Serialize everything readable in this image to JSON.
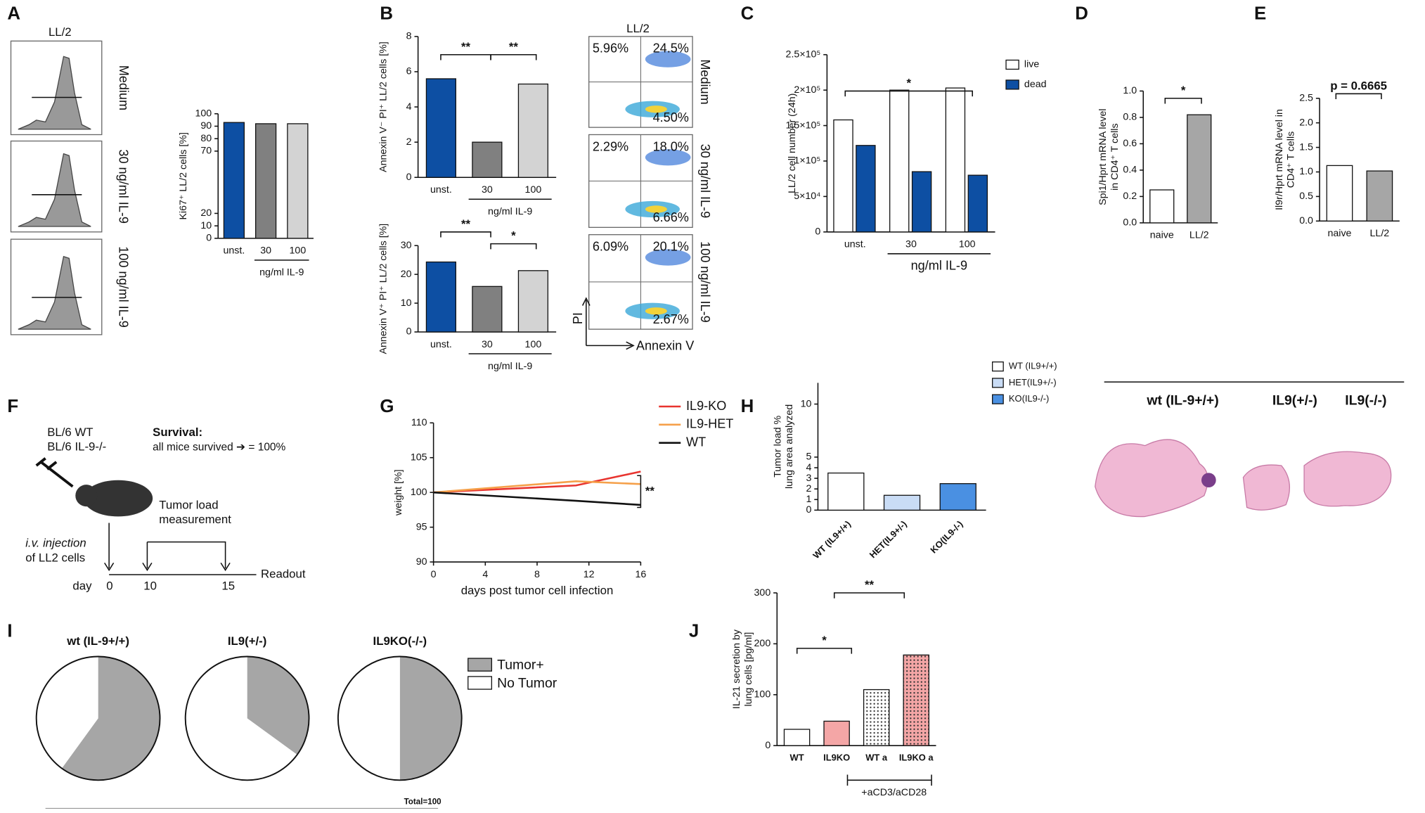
{
  "labels": {
    "panels": [
      "A",
      "B",
      "C",
      "D",
      "E",
      "F",
      "G",
      "H",
      "I",
      "J"
    ]
  },
  "flow_a": {
    "title": "LL/2",
    "rows": [
      "Medium",
      "30 ng/ml IL-9",
      "100 ng/ml IL-9"
    ]
  },
  "flow_b": {
    "title": "LL/2",
    "xlabel": "Annexin V",
    "ylabel": "PI",
    "rows": [
      {
        "label": "Medium",
        "quadrants": [
          "5.96%",
          "24.5%",
          "4.50%"
        ]
      },
      {
        "label": "30 ng/ml IL-9",
        "quadrants": [
          "2.29%",
          "18.0%",
          "6.66%"
        ]
      },
      {
        "label": "100 ng/ml IL-9",
        "quadrants": [
          "6.09%",
          "20.1%",
          "2.67%"
        ]
      }
    ]
  },
  "schematic": {
    "mice": [
      "BL/6 WT",
      "BL/6 IL-9-/-"
    ],
    "survival_title": "Survival:",
    "survival_text": "all mice survived ➔ = 100%",
    "measure": [
      "Tumor load",
      "measurement"
    ],
    "injection": [
      "i.v. injection",
      "of LL2 cells"
    ],
    "day": "day",
    "days": [
      "0",
      "10",
      "15"
    ],
    "readout": "Readout"
  },
  "histology": {
    "labels": [
      "wt (IL-9+/+)",
      "IL9(+/-)",
      "IL9(-/-)"
    ]
  },
  "chart_data": [
    {
      "type": "bar",
      "ylabel": "Ki67⁺ LL/2 cells [%]",
      "categories": [
        "unst.",
        "30",
        "100"
      ],
      "xlabel": "ng/ml IL-9",
      "values": [
        93,
        92,
        92
      ],
      "colors": [
        "#0d4fa3",
        "#808080",
        "#d3d3d3"
      ],
      "ylim": [
        0,
        100
      ],
      "yticks": [
        0,
        10,
        20,
        70,
        80,
        90,
        100
      ]
    },
    {
      "type": "bar",
      "ylabel": "Annexin V⁻ PI⁺ LL/2 cells [%]",
      "categories": [
        "unst.",
        "30",
        "100"
      ],
      "xlabel": "ng/ml IL-9",
      "values": [
        5.6,
        2.0,
        5.3
      ],
      "colors": [
        "#0d4fa3",
        "#808080",
        "#d3d3d3"
      ],
      "ylim": [
        0,
        8
      ],
      "yticks": [
        0,
        2,
        4,
        6,
        8
      ],
      "annotations": [
        "**",
        "**"
      ]
    },
    {
      "type": "bar",
      "ylabel": "Annexin V⁺ PI⁺ LL/2 cells [%]",
      "categories": [
        "unst.",
        "30",
        "100"
      ],
      "xlabel": "ng/ml IL-9",
      "values": [
        24.3,
        15.8,
        21.3
      ],
      "colors": [
        "#0d4fa3",
        "#808080",
        "#d3d3d3"
      ],
      "ylim": [
        0,
        30
      ],
      "yticks": [
        0,
        10,
        20,
        30
      ],
      "annotations": [
        "**",
        "*"
      ]
    },
    {
      "type": "bar",
      "ylabel": "LL/2 cell number (24h)",
      "categories": [
        "unst.",
        "30",
        "100"
      ],
      "xlabel": "ng/ml IL-9",
      "series": [
        {
          "name": "live",
          "color": "#ffffff",
          "values": [
            158000,
            200000,
            203000
          ]
        },
        {
          "name": "dead",
          "color": "#0d4fa3",
          "values": [
            122000,
            85000,
            80000
          ]
        }
      ],
      "ylim": [
        0,
        250000
      ],
      "yticks": [
        0,
        {
          "value": 50000,
          "label": "5×10⁴"
        },
        {
          "value": 100000,
          "label": "1×10⁵"
        },
        {
          "value": 150000,
          "label": "1.5×10⁵"
        },
        {
          "value": 200000,
          "label": "2×10⁵"
        },
        {
          "value": 250000,
          "label": "2.5×10⁵"
        }
      ],
      "annotations": [
        "*"
      ]
    },
    {
      "type": "bar",
      "ylabel": [
        "Spi1/Hprt mRNA level",
        "in CD4⁺ T cells"
      ],
      "categories": [
        "naive",
        "LL/2"
      ],
      "values": [
        0.25,
        0.82
      ],
      "colors": [
        "#ffffff",
        "#a6a6a6"
      ],
      "ylim": [
        0,
        1
      ],
      "yticks": [
        {
          "value": 0,
          "label": "0.0"
        },
        0.2,
        0.4,
        0.6,
        0.8,
        {
          "value": 1,
          "label": "1.0"
        }
      ],
      "annotations": [
        "*"
      ]
    },
    {
      "type": "bar",
      "ylabel": [
        "Il9r/Hprt mRNA level in",
        "CD4⁺ T cells"
      ],
      "categories": [
        "naive",
        "LL/2"
      ],
      "values": [
        1.13,
        1.02
      ],
      "colors": [
        "#ffffff",
        "#a6a6a6"
      ],
      "ylim": [
        0,
        2.5
      ],
      "yticks": [
        {
          "value": 0,
          "label": "0.0"
        },
        0.5,
        {
          "value": 1,
          "label": "1.0"
        },
        1.5,
        {
          "value": 2,
          "label": "2.0"
        },
        2.5
      ],
      "annotations": [
        "p = 0.6665"
      ]
    },
    {
      "type": "line",
      "xlabel": "days post tumor cell infection",
      "ylabel": "weight [%]",
      "x": [
        0,
        11,
        16
      ],
      "series": [
        {
          "name": "IL9-KO",
          "color": "#e8342f",
          "values": [
            100,
            101,
            103
          ]
        },
        {
          "name": "IL9-HET",
          "color": "#f5a04a",
          "values": [
            100,
            101.6,
            101.2
          ]
        },
        {
          "name": "WT",
          "color": "#111111",
          "values": [
            100,
            98.8,
            98.2
          ]
        }
      ],
      "xlim": [
        0,
        16
      ],
      "xticks": [
        0,
        4,
        8,
        12,
        16
      ],
      "ylim": [
        90,
        110
      ],
      "yticks": [
        90,
        95,
        100,
        105,
        110
      ],
      "annotations": [
        "**"
      ]
    },
    {
      "type": "bar",
      "ylabel": [
        "Tumor load %",
        "lung area analyzed"
      ],
      "categories": [
        "WT (IL9+/+)",
        "HET(IL9+/-)",
        "KO(IL9-/-)"
      ],
      "legend": [
        "WT (IL9+/+)",
        "HET(IL9+/-)",
        "KO(IL9-/-)"
      ],
      "values": [
        3.5,
        1.4,
        2.5
      ],
      "colors": [
        "#ffffff",
        "#c9dcf5",
        "#4a90e2"
      ],
      "ylim": [
        0,
        12
      ],
      "yticks": [
        0,
        1,
        2,
        3,
        4,
        5,
        10
      ]
    },
    {
      "type": "bar",
      "ylabel": [
        "IL-21 secretion by",
        "lung cells [pg/ml]"
      ],
      "categories": [
        "WT",
        "IL9KO",
        "WT a",
        "IL9KO a"
      ],
      "xlabel": "+aCD3/aCD28",
      "values": [
        32,
        48,
        110,
        178
      ],
      "colors": [
        "#ffffff",
        "#f4a6a6",
        "#ffffff",
        "#f4a6a6"
      ],
      "hatched": [
        false,
        false,
        true,
        true
      ],
      "ylim": [
        0,
        300
      ],
      "yticks": [
        0,
        100,
        200,
        300
      ],
      "annotations": [
        "*",
        "**"
      ]
    },
    {
      "type": "pie",
      "title": "wt (IL-9+/+)",
      "categories": [
        "Tumor+",
        "No Tumor"
      ],
      "values": [
        60,
        40
      ],
      "colors": [
        "#a6a6a6",
        "#ffffff"
      ]
    },
    {
      "type": "pie",
      "title": "IL9(+/-)",
      "categories": [
        "Tumor+",
        "No Tumor"
      ],
      "values": [
        35,
        65
      ],
      "colors": [
        "#a6a6a6",
        "#ffffff"
      ]
    },
    {
      "type": "pie",
      "title": "IL9KO(-/-)",
      "categories": [
        "Tumor+",
        "No Tumor"
      ],
      "values": [
        50,
        50
      ],
      "colors": [
        "#a6a6a6",
        "#ffffff"
      ],
      "note": "Total=100"
    }
  ]
}
